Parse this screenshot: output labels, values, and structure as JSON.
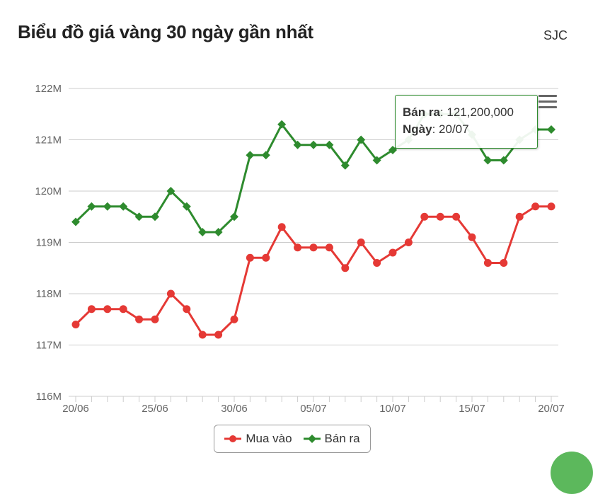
{
  "title": "Biểu đồ giá vàng 30 ngày gần nhất",
  "source": "SJC",
  "colors": {
    "buy": "#e53935",
    "sell": "#2e8b2e",
    "grid": "#cccccc"
  },
  "tooltip": {
    "label1": "Bán ra",
    "value1": "121,200,000",
    "label2": "Ngày",
    "value2": "20/07"
  },
  "menu_icon": "hamburger-menu-icon",
  "chart_data": {
    "type": "line",
    "title": "Biểu đồ giá vàng 30 ngày gần nhất",
    "xlabel": "",
    "ylabel": "",
    "x_ticks": [
      "20/06",
      "25/06",
      "30/06",
      "05/07",
      "10/07",
      "15/07",
      "20/07"
    ],
    "y_ticks": [
      "116M",
      "117M",
      "118M",
      "119M",
      "120M",
      "121M",
      "122M"
    ],
    "ylim": [
      116,
      122
    ],
    "y_unit": "M",
    "grid": true,
    "legend": "bottom",
    "x": [
      "20/06",
      "21/06",
      "22/06",
      "23/06",
      "24/06",
      "25/06",
      "26/06",
      "27/06",
      "28/06",
      "29/06",
      "30/06",
      "01/07",
      "02/07",
      "03/07",
      "04/07",
      "05/07",
      "06/07",
      "07/07",
      "08/07",
      "09/07",
      "10/07",
      "11/07",
      "12/07",
      "13/07",
      "14/07",
      "15/07",
      "16/07",
      "17/07",
      "18/07",
      "19/07",
      "20/07"
    ],
    "series": [
      {
        "name": "Mua vào",
        "marker": "circle",
        "values": [
          117.4,
          117.7,
          117.7,
          117.7,
          117.5,
          117.5,
          118.0,
          117.7,
          117.2,
          117.2,
          117.5,
          118.7,
          118.7,
          119.3,
          118.9,
          118.9,
          118.9,
          118.5,
          119.0,
          118.6,
          118.8,
          119.0,
          119.5,
          119.5,
          119.5,
          119.1,
          118.6,
          118.6,
          119.5,
          119.7,
          119.7
        ]
      },
      {
        "name": "Bán ra",
        "marker": "diamond",
        "values": [
          119.4,
          119.7,
          119.7,
          119.7,
          119.5,
          119.5,
          120.0,
          119.7,
          119.2,
          119.2,
          119.5,
          120.7,
          120.7,
          121.3,
          120.9,
          120.9,
          120.9,
          120.5,
          121.0,
          120.6,
          120.8,
          121.0,
          121.5,
          121.5,
          121.5,
          121.1,
          120.6,
          120.6,
          121.0,
          121.2,
          121.2
        ]
      }
    ]
  }
}
